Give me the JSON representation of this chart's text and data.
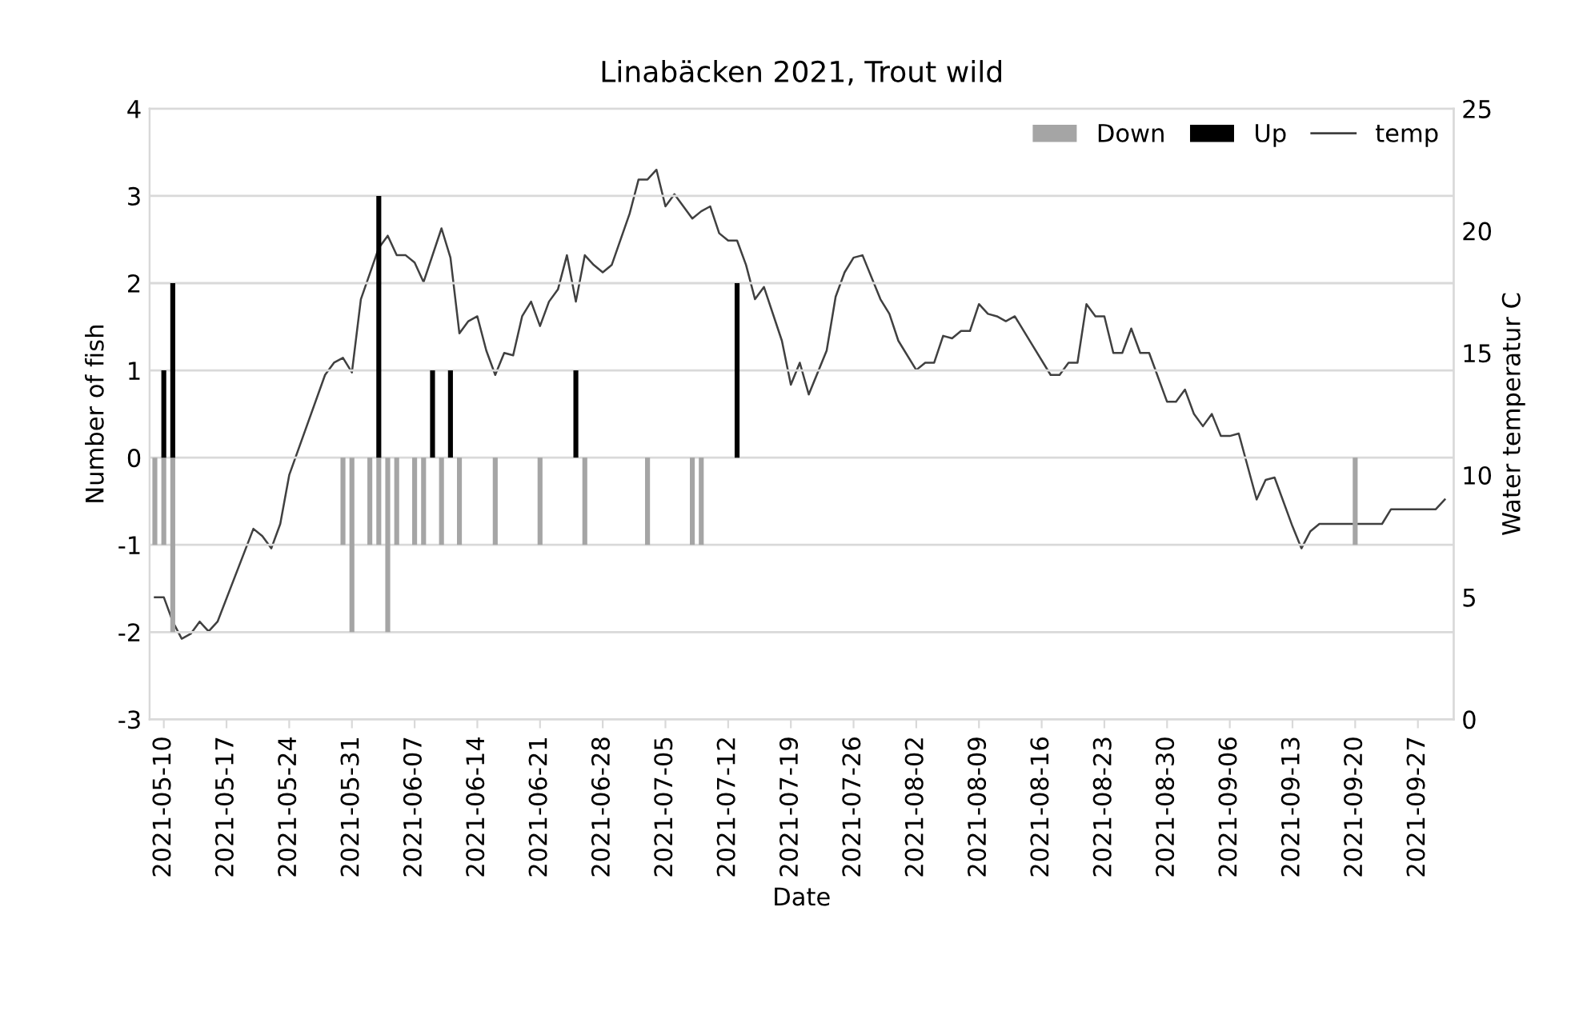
{
  "chart_data": {
    "type": "bar",
    "title": "Linabäcken 2021, Trout wild",
    "xlabel": "Date",
    "ylabel": "Number of fish",
    "y2label": "Water temperatur C",
    "xlim": [
      "2021-05-08T10:00",
      "2021-10-01T00:00"
    ],
    "xticks": [
      "2021-05-10",
      "2021-05-17",
      "2021-05-24",
      "2021-05-31",
      "2021-06-07",
      "2021-06-14",
      "2021-06-21",
      "2021-06-28",
      "2021-07-05",
      "2021-07-12",
      "2021-07-19",
      "2021-07-26",
      "2021-08-02",
      "2021-08-09",
      "2021-08-16",
      "2021-08-23",
      "2021-08-30",
      "2021-09-06",
      "2021-09-13",
      "2021-09-20",
      "2021-09-27"
    ],
    "ylim": [
      -3,
      4
    ],
    "yticks": [
      -3,
      -2,
      -1,
      0,
      1,
      2,
      3,
      4
    ],
    "y2lim": [
      0,
      25
    ],
    "y2ticks": [
      0,
      5,
      10,
      15,
      20,
      25
    ],
    "grid": "y",
    "legend": "top right",
    "series": [
      {
        "name": "Down",
        "color": "#a5a5a5",
        "x": [
          "2021-05-09",
          "2021-05-10",
          "2021-05-11",
          "2021-05-30",
          "2021-05-31",
          "2021-06-02",
          "2021-06-03",
          "2021-06-04",
          "2021-06-05",
          "2021-06-07",
          "2021-06-08",
          "2021-06-10",
          "2021-06-12",
          "2021-06-16",
          "2021-06-21",
          "2021-06-26",
          "2021-07-03",
          "2021-07-08",
          "2021-07-09",
          "2021-09-20"
        ],
        "values": [
          -1,
          -1,
          -2,
          -1,
          -2,
          -1,
          -1,
          -2,
          -1,
          -1,
          -1,
          -1,
          -1,
          -1,
          -1,
          -1,
          -1,
          -1,
          -1,
          -1
        ]
      },
      {
        "name": "Up",
        "color": "#000000",
        "x": [
          "2021-05-10",
          "2021-05-11",
          "2021-06-03",
          "2021-06-09",
          "2021-06-11",
          "2021-06-25",
          "2021-07-13"
        ],
        "values": [
          1,
          2,
          3,
          1,
          1,
          1,
          2
        ]
      },
      {
        "name": "temp",
        "type": "line",
        "axis": "y2",
        "color": "#404040",
        "marker": "none",
        "line_style": "solid",
        "x": [
          "2021-05-09",
          "2021-05-10",
          "2021-05-11",
          "2021-05-12",
          "2021-05-13",
          "2021-05-14",
          "2021-05-15",
          "2021-05-16",
          "2021-05-20",
          "2021-05-21",
          "2021-05-22",
          "2021-05-23",
          "2021-05-24",
          "2021-05-28",
          "2021-05-29",
          "2021-05-30",
          "2021-05-31",
          "2021-06-01",
          "2021-06-03",
          "2021-06-04",
          "2021-06-05",
          "2021-06-06",
          "2021-06-07",
          "2021-06-08",
          "2021-06-10",
          "2021-06-11",
          "2021-06-12",
          "2021-06-13",
          "2021-06-14",
          "2021-06-15",
          "2021-06-16",
          "2021-06-17",
          "2021-06-18",
          "2021-06-19",
          "2021-06-20",
          "2021-06-21",
          "2021-06-22",
          "2021-06-23",
          "2021-06-24",
          "2021-06-25",
          "2021-06-26",
          "2021-06-27",
          "2021-06-28",
          "2021-06-29",
          "2021-07-01",
          "2021-07-02",
          "2021-07-03",
          "2021-07-04",
          "2021-07-05",
          "2021-07-06",
          "2021-07-08",
          "2021-07-09",
          "2021-07-10",
          "2021-07-11",
          "2021-07-12",
          "2021-07-13",
          "2021-07-14",
          "2021-07-15",
          "2021-07-16",
          "2021-07-18",
          "2021-07-19",
          "2021-07-20",
          "2021-07-21",
          "2021-07-23",
          "2021-07-24",
          "2021-07-25",
          "2021-07-26",
          "2021-07-27",
          "2021-07-29",
          "2021-07-30",
          "2021-07-31",
          "2021-08-02",
          "2021-08-03",
          "2021-08-04",
          "2021-08-05",
          "2021-08-06",
          "2021-08-07",
          "2021-08-08",
          "2021-08-09",
          "2021-08-10",
          "2021-08-11",
          "2021-08-12",
          "2021-08-13",
          "2021-08-15",
          "2021-08-17",
          "2021-08-18",
          "2021-08-19",
          "2021-08-20",
          "2021-08-21",
          "2021-08-22",
          "2021-08-23",
          "2021-08-24",
          "2021-08-25",
          "2021-08-26",
          "2021-08-27",
          "2021-08-28",
          "2021-08-30",
          "2021-08-31",
          "2021-09-01",
          "2021-09-02",
          "2021-09-03",
          "2021-09-04",
          "2021-09-05",
          "2021-09-06",
          "2021-09-07",
          "2021-09-09",
          "2021-09-10",
          "2021-09-11",
          "2021-09-13",
          "2021-09-14",
          "2021-09-15",
          "2021-09-16",
          "2021-09-23",
          "2021-09-24",
          "2021-09-29",
          "2021-09-30"
        ],
        "values": [
          5.0,
          5.0,
          4.0,
          3.3,
          3.5,
          4.0,
          3.6,
          4.0,
          7.8,
          7.5,
          7.0,
          8.0,
          10.0,
          14.1,
          14.6,
          14.8,
          14.2,
          17.2,
          19.3,
          19.8,
          19.0,
          19.0,
          18.7,
          17.9,
          20.1,
          18.9,
          15.8,
          16.3,
          16.5,
          15.1,
          14.1,
          15.0,
          14.9,
          16.5,
          17.1,
          16.1,
          17.1,
          17.6,
          19.0,
          17.1,
          19.0,
          18.6,
          18.3,
          18.6,
          20.7,
          22.1,
          22.1,
          22.5,
          21.0,
          21.5,
          20.5,
          20.8,
          21.0,
          19.9,
          19.6,
          19.6,
          18.6,
          17.2,
          17.7,
          15.5,
          13.7,
          14.6,
          13.3,
          15.1,
          17.3,
          18.3,
          18.9,
          19.0,
          17.2,
          16.6,
          15.5,
          14.3,
          14.6,
          14.6,
          15.7,
          15.6,
          15.9,
          15.9,
          17.0,
          16.6,
          16.5,
          16.3,
          16.5,
          15.3,
          14.1,
          14.1,
          14.6,
          14.6,
          17.0,
          16.5,
          16.5,
          15.0,
          15.0,
          16.0,
          15.0,
          15.0,
          13.0,
          13.0,
          13.5,
          12.5,
          12.0,
          12.5,
          11.6,
          11.6,
          11.7,
          9.0,
          9.8,
          9.9,
          7.9,
          7.0,
          7.7,
          8.0,
          8.0,
          8.6,
          8.6,
          9.0
        ]
      }
    ]
  }
}
